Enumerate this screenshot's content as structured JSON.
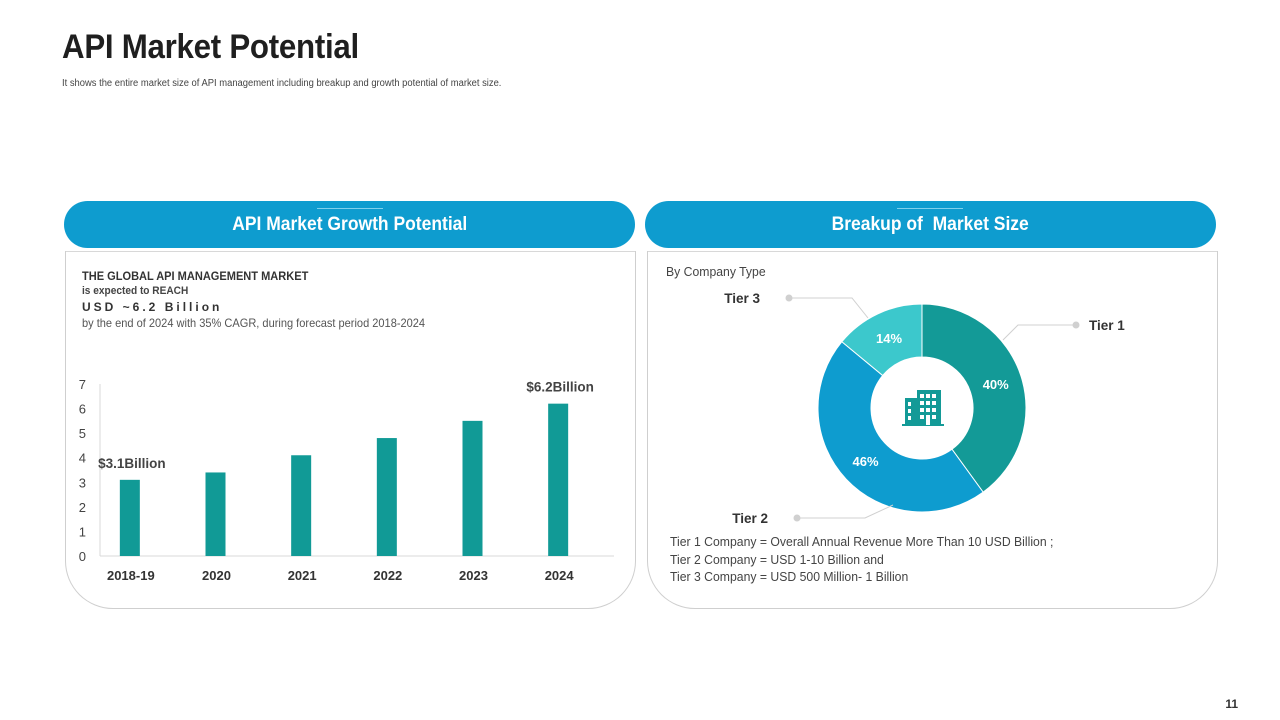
{
  "page": {
    "title": "API Market Potential",
    "subtitle": "It shows the entire market size of API management including breakup and growth potential of market size.",
    "page_number": "11"
  },
  "left_panel": {
    "header": "API Market Growth Potential",
    "market_text": {
      "line1": "THE GLOBAL API MANAGEMENT MARKET",
      "line2": "is expected to REACH",
      "line3": "USD ~6.2 Billion",
      "line4": "by the end of 2024 with 35% CAGR, during forecast period 2018-2024"
    }
  },
  "right_panel": {
    "header": "Breakup of  Market Size",
    "caption": "By Company Type",
    "definitions": [
      "Tier 1 Company = Overall Annual Revenue More Than 10 USD Billion ;",
      "Tier 2 Company = USD 1-10 Billion and",
      "Tier 3 Company = USD 500 Million- 1 Billion"
    ]
  },
  "colors": {
    "accent": "#0e9ccf",
    "bar": "#119a96",
    "tier1": "#139a97",
    "tier2": "#0e9ccf",
    "tier3": "#3cc8cc"
  },
  "chart_data": [
    {
      "type": "bar",
      "title": "API Market Growth Potential",
      "categories": [
        "2018-19",
        "2020",
        "2021",
        "2022",
        "2023",
        "2024"
      ],
      "values": [
        3.1,
        3.4,
        4.1,
        4.8,
        5.5,
        6.2
      ],
      "ylim": [
        0,
        7
      ],
      "yticks": [
        "0",
        "1",
        "2",
        "3",
        "4",
        "5",
        "6",
        "7"
      ],
      "xlabel": "",
      "ylabel": "",
      "annotations": [
        {
          "category": "2018-19",
          "text": "$3.1Billion"
        },
        {
          "category": "2024",
          "text": "$6.2Billion"
        }
      ]
    },
    {
      "type": "pie",
      "title": "Breakup of  Market Size",
      "donut": true,
      "labels": [
        "Tier 1",
        "Tier 2",
        "Tier 3"
      ],
      "values": [
        40,
        46,
        14
      ],
      "value_labels": [
        "40%",
        "46%",
        "14%"
      ]
    }
  ]
}
